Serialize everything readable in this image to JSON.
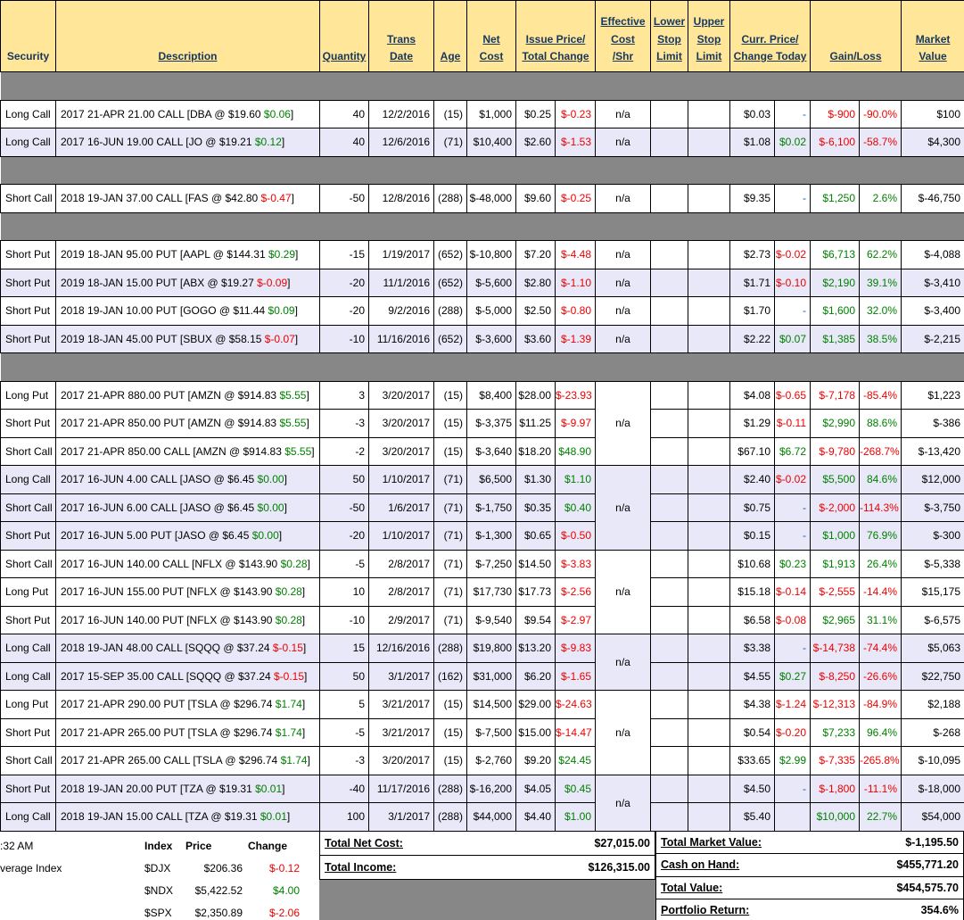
{
  "colors": {
    "header_bg": "#FFE699",
    "header_text": "#17375D",
    "row_shade_bg": "#E8E8F8",
    "separator_bg": "#878787",
    "positive": "#008000",
    "negative": "#EE0000",
    "dash_blue": "#0563C1"
  },
  "table": {
    "headers": {
      "security": "Security",
      "description": "Description",
      "quantity": "Quantity",
      "trans_date": "Trans\nDate",
      "age": "Age",
      "net_cost": "Net\nCost",
      "issue_total": "Issue Price/\nTotal Change",
      "effective_cost": "Effective\nCost\n/Shr",
      "lower_stop": "Lower\nStop\nLimit",
      "upper_stop": "Upper\nStop\nLimit",
      "curr_change": "Curr. Price/\nChange Today",
      "gain_loss": "Gain/Loss",
      "market_value": "Market\nValue"
    },
    "rows": [
      {
        "type": "sep"
      },
      {
        "sec": "Long Call",
        "desc": "2017 21-APR 21.00 CALL [DBA @ $19.60 $0.06]",
        "qty": "40",
        "date": "12/2/2016",
        "age": "(15)",
        "net": "$1,000",
        "issue": "$0.25",
        "chg": "$-0.23",
        "eff": "n/a",
        "effspan": 1,
        "curr": "$0.03",
        "today": "-",
        "gain": "$-900",
        "pct": "-90.0%",
        "mv": "$100",
        "shade": false
      },
      {
        "sec": "Long Call",
        "desc": "2017 16-JUN 19.00 CALL [JO @ $19.21 $0.12]",
        "qty": "40",
        "date": "12/6/2016",
        "age": "(71)",
        "net": "$10,400",
        "issue": "$2.60",
        "chg": "$-1.53",
        "eff": "n/a",
        "effspan": 1,
        "curr": "$1.08",
        "today": "$0.02",
        "gain": "$-6,100",
        "pct": "-58.7%",
        "mv": "$4,300",
        "shade": true
      },
      {
        "type": "sep"
      },
      {
        "sec": "Short Call",
        "desc": "2018 19-JAN 37.00 CALL [FAS @ $42.80 $-0.47]",
        "qty": "-50",
        "date": "12/8/2016",
        "age": "(288)",
        "net": "$-48,000",
        "issue": "$9.60",
        "chg": "$-0.25",
        "eff": "n/a",
        "effspan": 1,
        "curr": "$9.35",
        "today": "-",
        "gain": "$1,250",
        "pct": "2.6%",
        "mv": "$-46,750",
        "shade": false
      },
      {
        "type": "sep"
      },
      {
        "sec": "Short Put",
        "desc": "2019 18-JAN 95.00 PUT [AAPL @ $144.31 $0.29]",
        "qty": "-15",
        "date": "1/19/2017",
        "age": "(652)",
        "net": "$-10,800",
        "issue": "$7.20",
        "chg": "$-4.48",
        "eff": "n/a",
        "effspan": 1,
        "curr": "$2.73",
        "today": "$-0.02",
        "gain": "$6,713",
        "pct": "62.2%",
        "mv": "$-4,088",
        "shade": false
      },
      {
        "sec": "Short Put",
        "desc": "2019 18-JAN 15.00 PUT [ABX @ $19.27 $-0.09]",
        "qty": "-20",
        "date": "11/1/2016",
        "age": "(652)",
        "net": "$-5,600",
        "issue": "$2.80",
        "chg": "$-1.10",
        "eff": "n/a",
        "effspan": 1,
        "curr": "$1.71",
        "today": "$-0.10",
        "gain": "$2,190",
        "pct": "39.1%",
        "mv": "$-3,410",
        "shade": true
      },
      {
        "sec": "Short Put",
        "desc": "2018 19-JAN 10.00 PUT [GOGO @ $11.44 $0.09]",
        "qty": "-20",
        "date": "9/2/2016",
        "age": "(288)",
        "net": "$-5,000",
        "issue": "$2.50",
        "chg": "$-0.80",
        "eff": "n/a",
        "effspan": 1,
        "curr": "$1.70",
        "today": "-",
        "gain": "$1,600",
        "pct": "32.0%",
        "mv": "$-3,400",
        "shade": false
      },
      {
        "sec": "Short Put",
        "desc": "2019 18-JAN 45.00 PUT [SBUX @ $58.15 $-0.07]",
        "qty": "-10",
        "date": "11/16/2016",
        "age": "(652)",
        "net": "$-3,600",
        "issue": "$3.60",
        "chg": "$-1.39",
        "eff": "n/a",
        "effspan": 1,
        "curr": "$2.22",
        "today": "$0.07",
        "gain": "$1,385",
        "pct": "38.5%",
        "mv": "$-2,215",
        "shade": true
      },
      {
        "type": "sep"
      },
      {
        "sec": "Long Put",
        "desc": "2017 21-APR 880.00 PUT [AMZN @ $914.83 $5.55]",
        "qty": "3",
        "date": "3/20/2017",
        "age": "(15)",
        "net": "$8,400",
        "issue": "$28.00",
        "chg": "$-23.93",
        "eff": "n/a",
        "effspan": 3,
        "curr": "$4.08",
        "today": "$-0.65",
        "gain": "$-7,178",
        "pct": "-85.4%",
        "mv": "$1,223",
        "shade": false
      },
      {
        "sec": "Short Put",
        "desc": "2017 21-APR 850.00 PUT [AMZN @ $914.83 $5.55]",
        "qty": "-3",
        "date": "3/20/2017",
        "age": "(15)",
        "net": "$-3,375",
        "issue": "$11.25",
        "chg": "$-9.97",
        "eff": null,
        "curr": "$1.29",
        "today": "$-0.11",
        "gain": "$2,990",
        "pct": "88.6%",
        "mv": "$-386",
        "shade": false
      },
      {
        "sec": "Short Call",
        "desc": "2017 21-APR 850.00 CALL [AMZN @ $914.83 $5.55]",
        "qty": "-2",
        "date": "3/20/2017",
        "age": "(15)",
        "net": "$-3,640",
        "issue": "$18.20",
        "chg": "$48.90",
        "eff": null,
        "curr": "$67.10",
        "today": "$6.72",
        "gain": "$-9,780",
        "pct": "-268.7%",
        "mv": "$-13,420",
        "shade": false
      },
      {
        "sec": "Long Call",
        "desc": "2017 16-JUN 4.00 CALL [JASO @ $6.45 $0.00]",
        "qty": "50",
        "date": "1/10/2017",
        "age": "(71)",
        "net": "$6,500",
        "issue": "$1.30",
        "chg": "$1.10",
        "eff": "n/a",
        "effspan": 3,
        "curr": "$2.40",
        "today": "$-0.02",
        "gain": "$5,500",
        "pct": "84.6%",
        "mv": "$12,000",
        "shade": true
      },
      {
        "sec": "Short Call",
        "desc": "2017 16-JUN 6.00 CALL [JASO @ $6.45 $0.00]",
        "qty": "-50",
        "date": "1/6/2017",
        "age": "(71)",
        "net": "$-1,750",
        "issue": "$0.35",
        "chg": "$0.40",
        "eff": null,
        "curr": "$0.75",
        "today": "-",
        "gain": "$-2,000",
        "pct": "-114.3%",
        "mv": "$-3,750",
        "shade": true
      },
      {
        "sec": "Short Put",
        "desc": "2017 16-JUN 5.00 PUT [JASO @ $6.45 $0.00]",
        "qty": "-20",
        "date": "1/10/2017",
        "age": "(71)",
        "net": "$-1,300",
        "issue": "$0.65",
        "chg": "$-0.50",
        "eff": null,
        "curr": "$0.15",
        "today": "-",
        "gain": "$1,000",
        "pct": "76.9%",
        "mv": "$-300",
        "shade": true
      },
      {
        "sec": "Short Call",
        "desc": "2017 16-JUN 140.00 CALL [NFLX @ $143.90 $0.28]",
        "qty": "-5",
        "date": "2/8/2017",
        "age": "(71)",
        "net": "$-7,250",
        "issue": "$14.50",
        "chg": "$-3.83",
        "eff": "n/a",
        "effspan": 3,
        "curr": "$10.68",
        "today": "$0.23",
        "gain": "$1,913",
        "pct": "26.4%",
        "mv": "$-5,338",
        "shade": false
      },
      {
        "sec": "Long Put",
        "desc": "2017 16-JUN 155.00 PUT [NFLX @ $143.90 $0.28]",
        "qty": "10",
        "date": "2/8/2017",
        "age": "(71)",
        "net": "$17,730",
        "issue": "$17.73",
        "chg": "$-2.56",
        "eff": null,
        "curr": "$15.18",
        "today": "$-0.14",
        "gain": "$-2,555",
        "pct": "-14.4%",
        "mv": "$15,175",
        "shade": false
      },
      {
        "sec": "Short Put",
        "desc": "2017 16-JUN 140.00 PUT [NFLX @ $143.90 $0.28]",
        "qty": "-10",
        "date": "2/9/2017",
        "age": "(71)",
        "net": "$-9,540",
        "issue": "$9.54",
        "chg": "$-2.97",
        "eff": null,
        "curr": "$6.58",
        "today": "$-0.08",
        "gain": "$2,965",
        "pct": "31.1%",
        "mv": "$-6,575",
        "shade": false
      },
      {
        "sec": "Long Call",
        "desc": "2018 19-JAN 48.00 CALL [SQQQ @ $37.24 $-0.15]",
        "qty": "15",
        "date": "12/16/2016",
        "age": "(288)",
        "net": "$19,800",
        "issue": "$13.20",
        "chg": "$-9.83",
        "eff": "n/a",
        "effspan": 2,
        "curr": "$3.38",
        "today": "-",
        "gain": "$-14,738",
        "pct": "-74.4%",
        "mv": "$5,063",
        "shade": true
      },
      {
        "sec": "Long Call",
        "desc": "2017 15-SEP 35.00 CALL [SQQQ @ $37.24 $-0.15]",
        "qty": "50",
        "date": "3/1/2017",
        "age": "(162)",
        "net": "$31,000",
        "issue": "$6.20",
        "chg": "$-1.65",
        "eff": null,
        "curr": "$4.55",
        "today": "$0.27",
        "gain": "$-8,250",
        "pct": "-26.6%",
        "mv": "$22,750",
        "shade": true
      },
      {
        "sec": "Long Put",
        "desc": "2017 21-APR 290.00 PUT [TSLA @ $296.74 $1.74]",
        "qty": "5",
        "date": "3/21/2017",
        "age": "(15)",
        "net": "$14,500",
        "issue": "$29.00",
        "chg": "$-24.63",
        "eff": "n/a",
        "effspan": 3,
        "curr": "$4.38",
        "today": "$-1.24",
        "gain": "$-12,313",
        "pct": "-84.9%",
        "mv": "$2,188",
        "shade": false
      },
      {
        "sec": "Short Put",
        "desc": "2017 21-APR 265.00 PUT [TSLA @ $296.74 $1.74]",
        "qty": "-5",
        "date": "3/21/2017",
        "age": "(15)",
        "net": "$-7,500",
        "issue": "$15.00",
        "chg": "$-14.47",
        "eff": null,
        "curr": "$0.54",
        "today": "$-0.20",
        "gain": "$7,233",
        "pct": "96.4%",
        "mv": "$-268",
        "shade": false
      },
      {
        "sec": "Short Call",
        "desc": "2017 21-APR 265.00 CALL [TSLA @ $296.74 $1.74]",
        "qty": "-3",
        "date": "3/20/2017",
        "age": "(15)",
        "net": "$-2,760",
        "issue": "$9.20",
        "chg": "$24.45",
        "eff": null,
        "curr": "$33.65",
        "today": "$2.99",
        "gain": "$-7,335",
        "pct": "-265.8%",
        "mv": "$-10,095",
        "shade": false
      },
      {
        "sec": "Short Put",
        "desc": "2018 19-JAN 20.00 PUT [TZA @ $19.31 $0.01]",
        "qty": "-40",
        "date": "11/17/2016",
        "age": "(288)",
        "net": "$-16,200",
        "issue": "$4.05",
        "chg": "$0.45",
        "eff": "n/a",
        "effspan": 2,
        "curr": "$4.50",
        "today": "-",
        "gain": "$-1,800",
        "pct": "-11.1%",
        "mv": "$-18,000",
        "shade": true
      },
      {
        "sec": "Long Call",
        "desc": "2018 19-JAN 15.00 CALL [TZA @ $19.31 $0.01]",
        "qty": "100",
        "date": "3/1/2017",
        "age": "(288)",
        "net": "$44,000",
        "issue": "$4.40",
        "chg": "$1.00",
        "eff": null,
        "curr": "$5.40",
        "today": "",
        "gain": "$10,000",
        "pct": "22.7%",
        "mv": "$54,000",
        "shade": true
      }
    ]
  },
  "footer": {
    "left": {
      "time": ":32 AM",
      "label": "verage Index",
      "cols": [
        "Index",
        "Price",
        "Change"
      ],
      "rows": [
        {
          "index": "$DJX",
          "price": "$206.36",
          "change": "$-0.12"
        },
        {
          "index": "$NDX",
          "price": "$5,422.52",
          "change": "$4.00"
        },
        {
          "index": "$SPX",
          "price": "$2,350.89",
          "change": "$-2.06"
        }
      ]
    },
    "middle": [
      {
        "label": "Total Net Cost:",
        "value": "$27,015.00"
      },
      {
        "label": "Total Income:",
        "value": "$126,315.00"
      }
    ],
    "right": [
      {
        "label": "Total Market Value:",
        "value": "$-1,195.50"
      },
      {
        "label": "Cash on Hand:",
        "value": "$455,771.20"
      },
      {
        "label": "Total Value:",
        "value": "$454,575.70"
      },
      {
        "label": "Portfolio Return:",
        "value": "354.6%"
      }
    ]
  }
}
